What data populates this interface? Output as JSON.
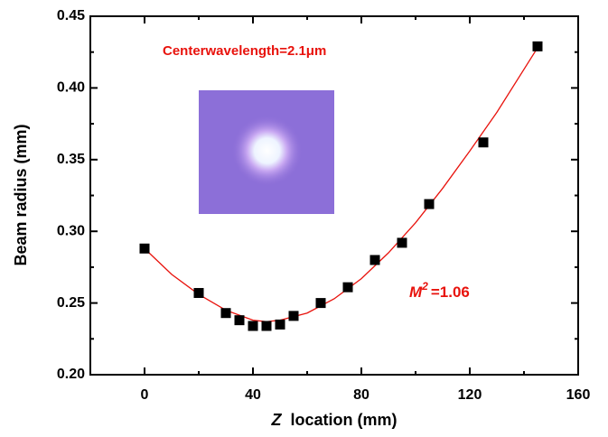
{
  "chart_data": {
    "type": "scatter",
    "xlabel_symbol": "Z",
    "xlabel": "location (mm)",
    "ylabel": "Beam radius (mm)",
    "annotations": [
      "Centerwavelength=2.1μm"
    ],
    "m2_label": {
      "symbol": "M",
      "superscript": "2",
      "text": "=1.06"
    },
    "xlim": [
      -20,
      160
    ],
    "ylim": [
      0.2,
      0.45
    ],
    "xticks": [
      0,
      40,
      80,
      120,
      160
    ],
    "xminor": [
      -20,
      20,
      60,
      100,
      140
    ],
    "yticks": [
      {
        "value": 0.2,
        "label": "0.20"
      },
      0.25,
      {
        "value": 0.3,
        "label": "0.30"
      },
      0.35,
      {
        "value": 0.4,
        "label": "0.40"
      },
      0.45
    ],
    "yminor": [
      0.225,
      0.275,
      0.325,
      0.375,
      0.425
    ],
    "series": [
      {
        "kind": "points",
        "color": "#000000",
        "x": [
          0,
          20,
          30,
          35,
          40,
          45,
          50,
          55,
          65,
          75,
          85,
          95,
          105,
          125,
          145
        ],
        "values": [
          0.288,
          0.257,
          0.243,
          0.238,
          0.234,
          0.234,
          0.235,
          0.241,
          0.25,
          0.261,
          0.28,
          0.292,
          0.319,
          0.362,
          0.429
        ]
      },
      {
        "kind": "line",
        "color": "#e8120c",
        "x": [
          0,
          10,
          20,
          30,
          40,
          45,
          50,
          60,
          70,
          80,
          90,
          100,
          110,
          120,
          130,
          145
        ],
        "values": [
          0.288,
          0.27,
          0.256,
          0.245,
          0.238,
          0.237,
          0.238,
          0.243,
          0.253,
          0.267,
          0.285,
          0.306,
          0.33,
          0.356,
          0.383,
          0.428
        ]
      }
    ]
  }
}
